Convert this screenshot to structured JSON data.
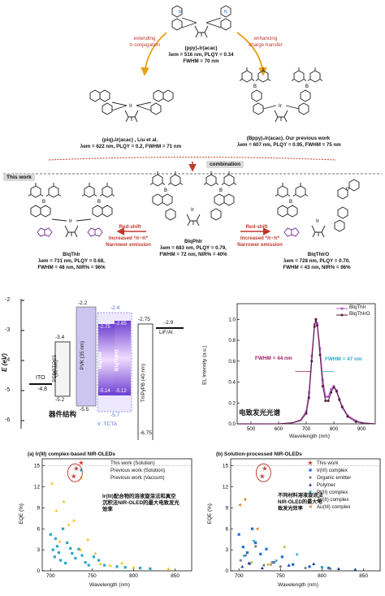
{
  "colors": {
    "red": "#c0392b",
    "purple": "#8e44ad",
    "orange": "#e67e22",
    "cyan": "#1aa3c8",
    "pvk": "#b7a7e6",
    "lilac": "#caa6ee"
  },
  "top": {
    "mol1_caption": "(ppy)₂Ir(acac)",
    "mol1_data": "λem = 516 nm, PLQY = 0.34",
    "mol1_fwhm": "FWHM = 70 nm",
    "left_arrow_label": [
      "extending",
      "π-conjugation"
    ],
    "right_arrow_label": [
      "enhancing",
      "charge transfer"
    ],
    "mol2_caption": "(piq)₂Ir(acac) , Liu et al.",
    "mol2_data": "λem = 622 nm, PLQY = 0.2, FWHM = 71 nm",
    "mol3_caption": "(Bppy)₂Ir(acac), Our previous work",
    "mol3_data": "λem = 607 nm, PLQY = 0.95, FWHM = 75 nm",
    "combination": "combination"
  },
  "mid": {
    "this_work": "This work",
    "blqthir_name": "BlqThIr",
    "blqthir_data": [
      "λem = 731 nm, PLQY = 0.68,",
      "FWHM = 48 nm, NIR% = 96%"
    ],
    "blqphir_name": "BlqPhIr",
    "blqphir_data": [
      "λem = 683 nm, PLQY = 0.79,",
      "FWHM = 72 nm, NIR% = 40%"
    ],
    "blqthiro_name": "BlqThIrO",
    "blqthiro_data": [
      "λem = 728 nm, PLQY = 0.70,",
      "FWHM = 43 nm, NIR% = 96%"
    ],
    "redshift": "Red-shift",
    "increased": "Increased ³π−π*",
    "narrower": "Narrower emission"
  },
  "energy": {
    "ylabel": "E (eV)",
    "ticks": [
      "-2",
      "-3",
      "-4",
      "-5",
      "-6"
    ],
    "ito": "ITO",
    "ito_val": "-4.8",
    "pedot": "PEDOT:PSS",
    "pedot_thk": "(30 nm)",
    "pedot_top": "-3.4",
    "pedot_bot": "-5.2",
    "pvk": "PVK (35 nm)",
    "pvk_top": "-2.2",
    "pvk_bot": "-5.5",
    "tcta_top": "-2.4",
    "tcta_bot": "-5.7",
    "blqthir": "BlqThIr",
    "blqthiro": "BlqThIrO",
    "emit_top_l": "-2.75",
    "emit_top_r": "-2.65",
    "emit_bot_l": "-5.14",
    "emit_bot_r": "-5.12",
    "tmpypb": "TmPyPB (40 nm)",
    "tmpypb_top": "-2.75",
    "tmpypb_bot": "-6.75",
    "lif": "LiF/Al",
    "lif_val": "-2.9",
    "ir_tcta": "Ir :TCTA",
    "caption": "器件结构"
  },
  "el_chart": {
    "ylabel": "EL Intensity (a.u.)",
    "xlabel": "Wavelength (nm)",
    "legend": [
      "BlqThIr",
      "BlqThIrO"
    ],
    "fwhm1": "FWHM = 44 nm",
    "fwhm2": "FWHM = 47 nm",
    "caption": "电致发光光谱",
    "xticks": [
      "500",
      "600",
      "700",
      "800",
      "900"
    ],
    "yticks": [
      "0.0",
      "0.2",
      "0.4",
      "0.6",
      "0.8",
      "1.0"
    ]
  },
  "chart_data": [
    {
      "type": "line",
      "title": "",
      "xlabel": "Wavelength (nm)",
      "ylabel": "EL Intensity (a.u.)",
      "xlim": [
        450,
        950
      ],
      "ylim": [
        0,
        1.15
      ],
      "series": [
        {
          "name": "BlqThIr",
          "color": "#b05cc6",
          "x": [
            450,
            500,
            550,
            600,
            650,
            680,
            700,
            710,
            720,
            730,
            735,
            740,
            750,
            760,
            770,
            780,
            790,
            800,
            810,
            820,
            830,
            850,
            880,
            900,
            950
          ],
          "y": [
            0,
            0,
            0,
            0,
            0.01,
            0.04,
            0.12,
            0.3,
            0.65,
            0.95,
            1.0,
            0.96,
            0.72,
            0.42,
            0.26,
            0.26,
            0.33,
            0.36,
            0.32,
            0.24,
            0.17,
            0.08,
            0.03,
            0.01,
            0
          ]
        },
        {
          "name": "BlqThIrO",
          "color": "#5b1a3e",
          "x": [
            450,
            500,
            550,
            600,
            650,
            680,
            700,
            710,
            720,
            730,
            735,
            740,
            750,
            760,
            770,
            780,
            790,
            800,
            810,
            820,
            830,
            850,
            880,
            900,
            950
          ],
          "y": [
            0,
            0,
            0,
            0,
            0.01,
            0.03,
            0.1,
            0.25,
            0.6,
            0.93,
            1.0,
            0.94,
            0.66,
            0.36,
            0.22,
            0.22,
            0.3,
            0.35,
            0.31,
            0.23,
            0.16,
            0.07,
            0.02,
            0.01,
            0
          ]
        }
      ]
    },
    {
      "type": "scatter",
      "title": "(a) Ir(III) complex-based NIR-OLEDs",
      "xlabel": "Wavelength (nm)",
      "ylabel": "EQE (%)",
      "xlim": [
        690,
        870
      ],
      "ylim": [
        0,
        16
      ],
      "series": [
        {
          "name": "This work (Solution)",
          "color": "#c0392b",
          "marker": "star",
          "x": [
            728,
            731
          ],
          "y": [
            13.5,
            14.6
          ]
        },
        {
          "name": "Previous work (Solution)",
          "color": "#2aa7c9",
          "marker": "square",
          "x": [
            700,
            703,
            705,
            706,
            708,
            710,
            712,
            715,
            718,
            720,
            724,
            726,
            730,
            734,
            738,
            742,
            746,
            752,
            758,
            765,
            780,
            790,
            808,
            820
          ],
          "y": [
            5.2,
            3.0,
            2.0,
            4.6,
            3.5,
            2.6,
            1.5,
            6.0,
            1.1,
            4.0,
            3.2,
            2.5,
            1.8,
            3.1,
            2.2,
            1.2,
            0.8,
            2.0,
            1.5,
            0.8,
            0.6,
            0.5,
            0.4,
            0.3
          ]
        },
        {
          "name": "Previous work (Vaccum)",
          "color": "#f0c419",
          "marker": "triangle",
          "x": [
            702,
            707,
            711,
            716,
            722,
            728,
            736,
            745,
            754,
            760,
            772,
            786,
            800,
            842
          ],
          "y": [
            12.5,
            8.6,
            4.2,
            9.9,
            6.6,
            7.2,
            3.0,
            4.5,
            2.5,
            1.0,
            0.8,
            1.1,
            0.5,
            0.3
          ]
        }
      ],
      "annotation": "Ir(III)配合物的溶液旋涂法和真空沉积法NIR-OLED的最大电致发光效率"
    },
    {
      "type": "scatter",
      "title": "(b) Solution-processed NIR-OLEDs",
      "xlabel": "Wavelength (nm)",
      "ylabel": "EQE (%)",
      "xlim": [
        690,
        870
      ],
      "ylim": [
        0,
        16
      ],
      "series": [
        {
          "name": "This work",
          "color": "#c0392b",
          "marker": "star",
          "x": [
            728,
            731
          ],
          "y": [
            13.5,
            14.6
          ]
        },
        {
          "name": "Ir(III) complex",
          "color": "#1e6fd9",
          "marker": "square",
          "x": [
            700,
            705,
            710,
            716,
            720,
            726,
            733,
            742,
            752,
            765,
            785,
            808
          ],
          "y": [
            5.2,
            3.4,
            2.6,
            6.0,
            4.0,
            2.4,
            3.1,
            1.2,
            2.0,
            0.9,
            0.6,
            0.4
          ]
        },
        {
          "name": "Organic emitter",
          "color": "#7f7f7f",
          "marker": "circle",
          "x": [
            702,
            708,
            713,
            720,
            730,
            740,
            750,
            780,
            800,
            810
          ],
          "y": [
            1.5,
            2.2,
            1.0,
            3.5,
            0.8,
            1.2,
            0.6,
            0.4,
            0.5,
            0.3
          ]
        },
        {
          "name": "Polymer",
          "color": "#1f3a93",
          "marker": "triangle",
          "x": [
            704,
            712,
            728,
            760,
            790,
            820,
            840
          ],
          "y": [
            0.6,
            1.1,
            0.4,
            0.8,
            1.0,
            0.3,
            0.2
          ]
        },
        {
          "name": "Pt(II) complex",
          "color": "#2aa7c9",
          "marker": "triangle-down",
          "x": [
            706,
            718,
            745,
            770,
            800
          ],
          "y": [
            2.1,
            4.2,
            1.4,
            2.3,
            0.5
          ]
        },
        {
          "name": "Zn(II) complex",
          "color": "#9ccc65",
          "marker": "diamond",
          "x": [
            715,
            735,
            755
          ],
          "y": [
            1.2,
            0.9,
            3.4
          ]
        },
        {
          "name": "Au(III) complex",
          "color": "#e67e22",
          "marker": "left-triangle",
          "x": [
            701,
            707,
            722,
            738
          ],
          "y": [
            9.4,
            10.2,
            6.0,
            0.9
          ]
        }
      ],
      "annotation": "不同材料溶液旋涂法NIR-OLED的最大电致发光效率"
    }
  ]
}
